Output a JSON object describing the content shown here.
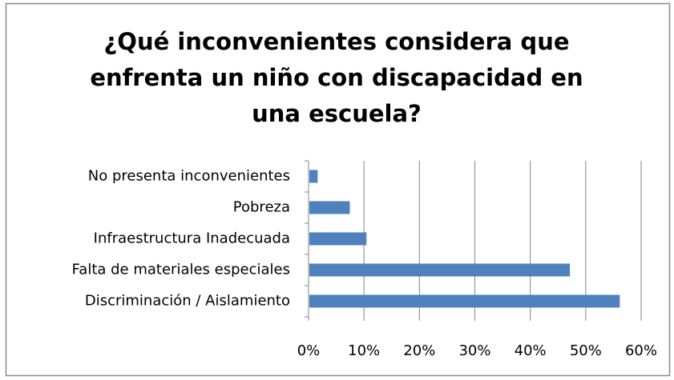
{
  "chart_data": {
    "type": "bar",
    "orientation": "horizontal",
    "title": "¿Qué inconvenientes considera que enfrenta un niño con discapacidad en una escuela?",
    "categories": [
      "No presenta inconvenientes",
      "Pobreza",
      "Infraestructura Inadecuada",
      "Falta de materiales especiales",
      "Discriminación / Aislamiento"
    ],
    "values": [
      1.5,
      7.3,
      10.3,
      47,
      56
    ],
    "color": "#4f81bd",
    "xlim": [
      0,
      60
    ],
    "xticks": [
      {
        "value": 0,
        "label": "0%"
      },
      {
        "value": 10,
        "label": "10%"
      },
      {
        "value": 20,
        "label": "20%"
      },
      {
        "value": 30,
        "label": "30%"
      },
      {
        "value": 40,
        "label": "40%"
      },
      {
        "value": 50,
        "label": "50%"
      },
      {
        "value": 60,
        "label": "60%"
      }
    ],
    "grid": true
  }
}
